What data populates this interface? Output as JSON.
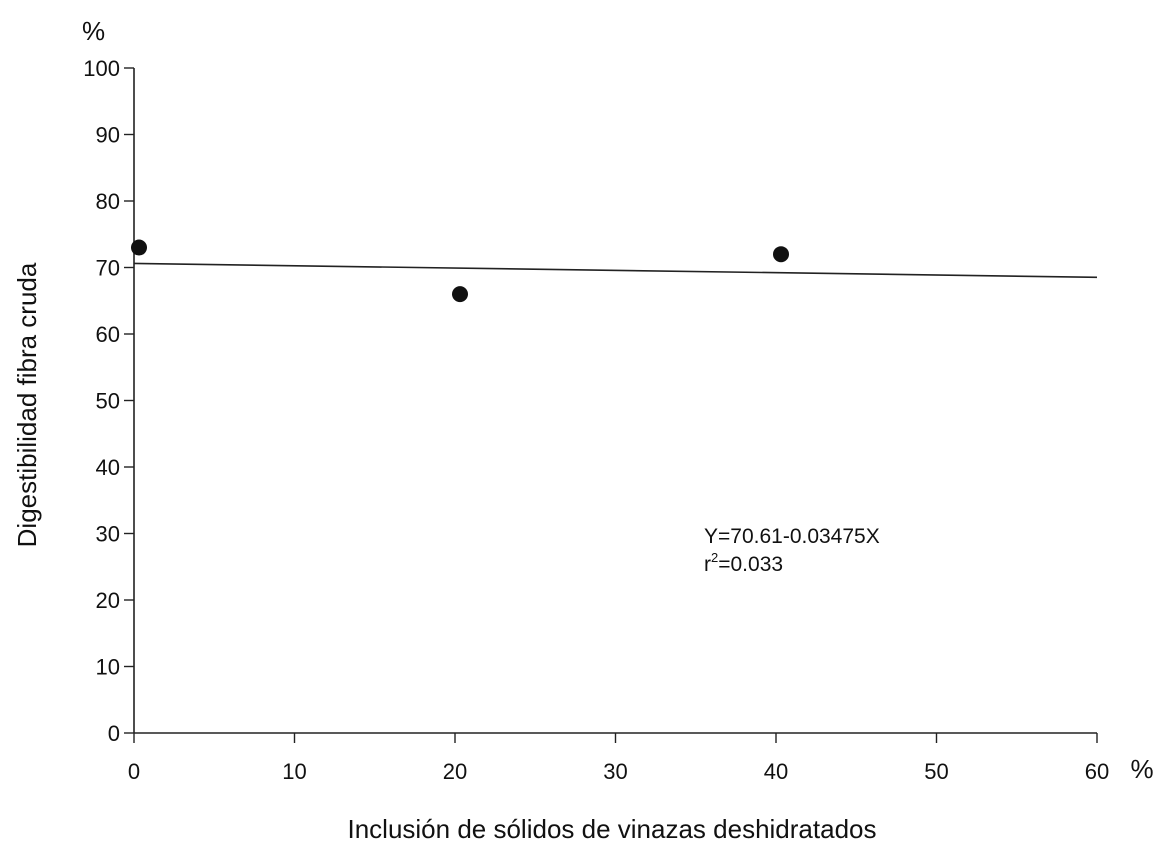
{
  "chart_data": {
    "type": "scatter",
    "title": "",
    "ylabel": "Digestibilidad fibra cruda",
    "ylabel_unit": "%",
    "xlabel": "Inclusión de sólidos de vinazas deshidratados",
    "xlabel_unit": "%",
    "xlim": [
      0,
      60
    ],
    "ylim": [
      0,
      100
    ],
    "x_ticks": [
      0,
      10,
      20,
      30,
      40,
      50,
      60
    ],
    "y_ticks": [
      0,
      10,
      20,
      30,
      40,
      50,
      60,
      70,
      80,
      90,
      100
    ],
    "grid": false,
    "series": [
      {
        "points": [
          {
            "x": 0,
            "y": 73
          },
          {
            "x": 20,
            "y": 66
          },
          {
            "x": 40,
            "y": 72
          }
        ]
      }
    ],
    "regression": {
      "intercept": 70.61,
      "slope": -0.03475,
      "x_range": [
        0,
        60
      ]
    },
    "annotation": {
      "equation": "Y=70.61-0.03475X",
      "r2_prefix": "r",
      "r2_sup": "2",
      "r2_value": "=0.033"
    }
  }
}
